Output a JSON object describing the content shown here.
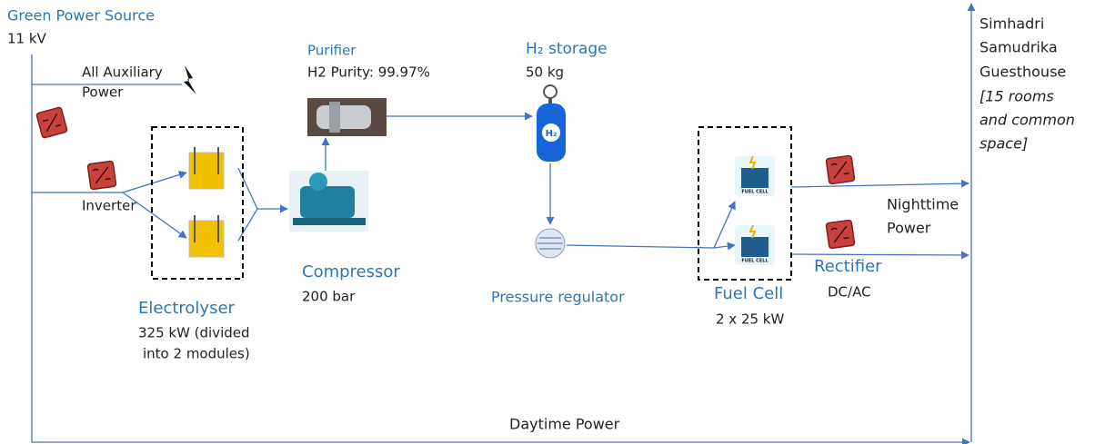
{
  "source": {
    "title": "Green Power Source",
    "voltage": "11 kV"
  },
  "auxiliary": {
    "lines": [
      "All Auxiliary",
      "Power"
    ]
  },
  "inverter": {
    "label": "Inverter"
  },
  "electrolyser": {
    "title": "Electrolyser",
    "details": [
      "325 kW (divided",
      "into 2 modules)"
    ]
  },
  "purifier": {
    "title": "Purifier",
    "detail": "H2 Purity: 99.97%"
  },
  "compressor": {
    "title": "Compressor",
    "detail": "200 bar"
  },
  "storage": {
    "title": "H₂ storage",
    "detail": "50 kg",
    "icon_label": "H₂"
  },
  "regulator": {
    "title": "Pressure regulator"
  },
  "fuel_cell": {
    "title": "Fuel Cell",
    "detail": "2 x 25 kW",
    "icon_label": "FUEL CELL"
  },
  "rectifier": {
    "title": "Rectifier",
    "detail": "DC/AC"
  },
  "nighttime": {
    "lines": [
      "Nighttime",
      "Power"
    ]
  },
  "daytime": {
    "label": "Daytime Power"
  },
  "guesthouse": {
    "name": [
      "Simhadri",
      "Samudrika",
      "Guesthouse"
    ],
    "note": [
      "[15 rooms",
      "and common",
      "space]"
    ]
  }
}
